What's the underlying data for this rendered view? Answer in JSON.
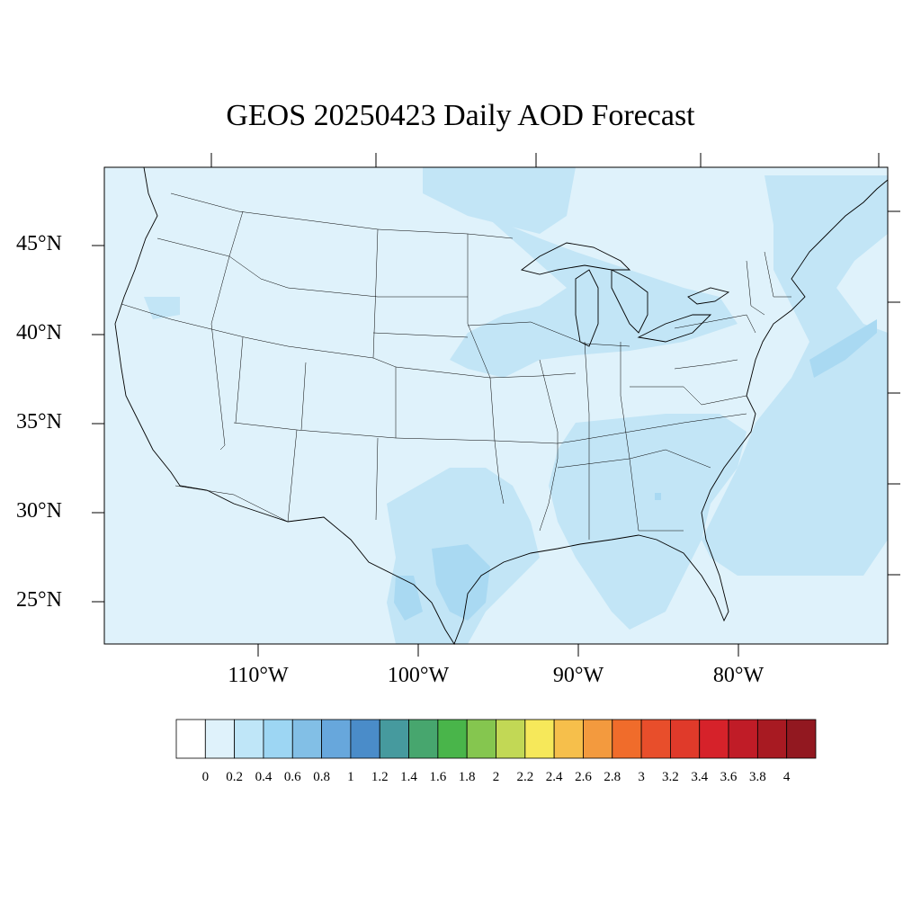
{
  "title": "GEOS 20250423 Daily AOD Forecast",
  "map": {
    "lat_labels": [
      "45°N",
      "40°N",
      "35°N",
      "30°N",
      "25°N"
    ],
    "lon_labels": [
      "110°W",
      "100°W",
      "90°W",
      "80°W"
    ],
    "background_color": "#dff2fb",
    "highlight_color": "#c2e5f6",
    "strong_color": "#a9d9f2",
    "coast_color": "#000000"
  },
  "colorbar": {
    "colors": [
      "#ffffff",
      "#dff2fb",
      "#bfe6f8",
      "#9dd6f3",
      "#82bfe6",
      "#67a7dc",
      "#4a8cc9",
      "#469a9e",
      "#47a66e",
      "#49b54a",
      "#85c64f",
      "#c2d855",
      "#f6e85a",
      "#f6bf4b",
      "#f39a3e",
      "#f06c2b",
      "#e84e2b",
      "#e03a2a",
      "#d6222a",
      "#c01c27",
      "#a81a22",
      "#921820"
    ],
    "labels": [
      "0",
      "0.2",
      "0.4",
      "0.6",
      "0.8",
      "1",
      "1.2",
      "1.4",
      "1.6",
      "1.8",
      "2",
      "2.2",
      "2.4",
      "2.6",
      "2.8",
      "3",
      "3.2",
      "3.4",
      "3.6",
      "3.8",
      "4"
    ]
  }
}
